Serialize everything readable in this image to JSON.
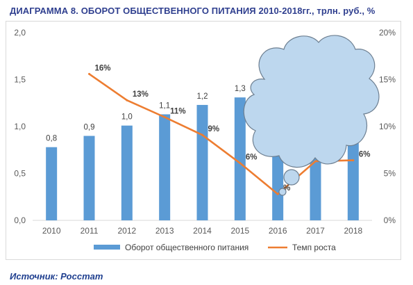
{
  "title": "ДИАГРАММА 8. ОБОРОТ ОБЩЕСТВЕННОГО ПИТАНИЯ 2010-2018гг., трлн. руб., %",
  "source": "Источник: Росстат",
  "colors": {
    "bars": "#5b9bd5",
    "line": "#ed7d31",
    "cloud": "#bdd7ee",
    "cloud_stroke": "#6d7f91",
    "title": "#2f3f8f"
  },
  "chart_data": {
    "type": "bar",
    "categories": [
      "2010",
      "2011",
      "2012",
      "2013",
      "2014",
      "2015",
      "2016",
      "2017",
      "2018"
    ],
    "series": [
      {
        "name": "Оборот общественного питания",
        "type": "bar",
        "axis": "left",
        "values": [
          0.78,
          0.9,
          1.01,
          1.13,
          1.23,
          1.31,
          1.42,
          1.52,
          1.62
        ],
        "labels": [
          "0,8",
          "0,9",
          "1,0",
          "1,1",
          "1,2",
          "1,3",
          "",
          "",
          ""
        ]
      },
      {
        "name": "Темп роста",
        "type": "line",
        "axis": "right",
        "values": [
          null,
          15.6,
          12.8,
          11.0,
          9.1,
          6.1,
          2.8,
          6.3,
          6.4
        ],
        "labels": [
          "",
          "16%",
          "13%",
          "11%",
          "9%",
          "6%",
          "%",
          "",
          "6%"
        ]
      }
    ],
    "y_left": {
      "ylim": [
        0,
        2.0
      ],
      "ticks": [
        "0,0",
        "0,5",
        "1,0",
        "1,5",
        "2,0"
      ]
    },
    "y_right": {
      "ylim": [
        0,
        20
      ],
      "ticks": [
        "0%",
        "5%",
        "10%",
        "15%",
        "20%"
      ]
    },
    "grid": false,
    "legend_position": "bottom"
  }
}
